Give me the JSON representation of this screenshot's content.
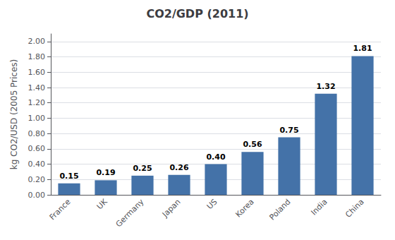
{
  "chart_data": {
    "type": "bar",
    "title": "CO2/GDP (2011)",
    "ylabel": "kg CO2/USD (2005 Prices)",
    "categories": [
      "France",
      "UK",
      "Germany",
      "Japan",
      "US",
      "Korea",
      "Poland",
      "India",
      "China"
    ],
    "values": [
      0.15,
      0.19,
      0.25,
      0.26,
      0.4,
      0.56,
      0.75,
      1.32,
      1.81
    ],
    "value_labels": [
      "0.15",
      "0.19",
      "0.25",
      "0.26",
      "0.40",
      "0.56",
      "0.75",
      "1.32",
      "1.81"
    ],
    "data_labels": true,
    "color": "#4472A8",
    "ylim": [
      0.0,
      2.1
    ],
    "yticks": [
      {
        "value": 0.0,
        "label": "0.00"
      },
      {
        "value": 0.2,
        "label": "0.20"
      },
      {
        "value": 0.4,
        "label": "0.40"
      },
      {
        "value": 0.6,
        "label": "0.60"
      },
      {
        "value": 0.8,
        "label": "0.80"
      },
      {
        "value": 1.0,
        "label": "1.00"
      },
      {
        "value": 1.2,
        "label": "1.20"
      },
      {
        "value": 1.4,
        "label": "1.40"
      },
      {
        "value": 1.6,
        "label": "1.60"
      },
      {
        "value": 1.8,
        "label": "1.80"
      },
      {
        "value": 2.0,
        "label": "2.00"
      }
    ],
    "grid": true
  }
}
